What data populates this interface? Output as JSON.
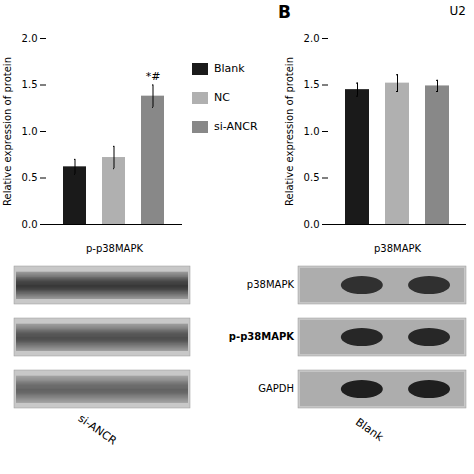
{
  "chart_data": [
    {
      "type": "bar",
      "categories": [
        "Blank",
        "NC",
        "si-ANCR"
      ],
      "values": [
        0.62,
        0.72,
        1.38
      ],
      "errors": [
        0.08,
        0.12,
        0.12
      ],
      "colors": [
        "#1a1a1a",
        "#b0b0b0",
        "#888888"
      ],
      "ylabel": "Relative expression of protein",
      "xlabel": "p-p38MAPK",
      "ylim": [
        0,
        2.0
      ],
      "yticks": [
        {
          "value": 0.0,
          "label": "0.0"
        },
        0.5,
        {
          "value": 1.0,
          "label": "1.0"
        },
        1.5,
        {
          "value": 2.0,
          "label": "2.0"
        }
      ],
      "tick_labels": "y",
      "legend": "right",
      "annotations": [
        {
          "text": "*#",
          "category": "si-ANCR"
        }
      ]
    },
    {
      "type": "bar",
      "categories": [
        "Blank",
        "NC",
        "si-ANCR"
      ],
      "values": [
        1.45,
        1.52,
        1.49
      ],
      "errors": [
        0.07,
        0.09,
        0.06
      ],
      "colors": [
        "#1a1a1a",
        "#b0b0b0",
        "#888888"
      ],
      "ylabel": "Relative expression of protein",
      "xlabel": "p38MAPK",
      "ylim": [
        0,
        2.0
      ],
      "yticks": [
        {
          "value": 0.0,
          "label": "0.0"
        },
        0.5,
        {
          "value": 1.0,
          "label": "1.0"
        },
        1.5,
        {
          "value": 2.0,
          "label": "2.0"
        }
      ],
      "tick_labels": "y",
      "annotations": [
        {
          "text": "B"
        },
        {
          "text": "U2"
        }
      ]
    }
  ],
  "blots": [
    {
      "label": "si-ANCR",
      "bands": 3
    },
    {
      "label": "Blank",
      "band_labels": [
        "p38MAPK",
        "p-p38MAPK",
        "GAPDH"
      ]
    }
  ]
}
